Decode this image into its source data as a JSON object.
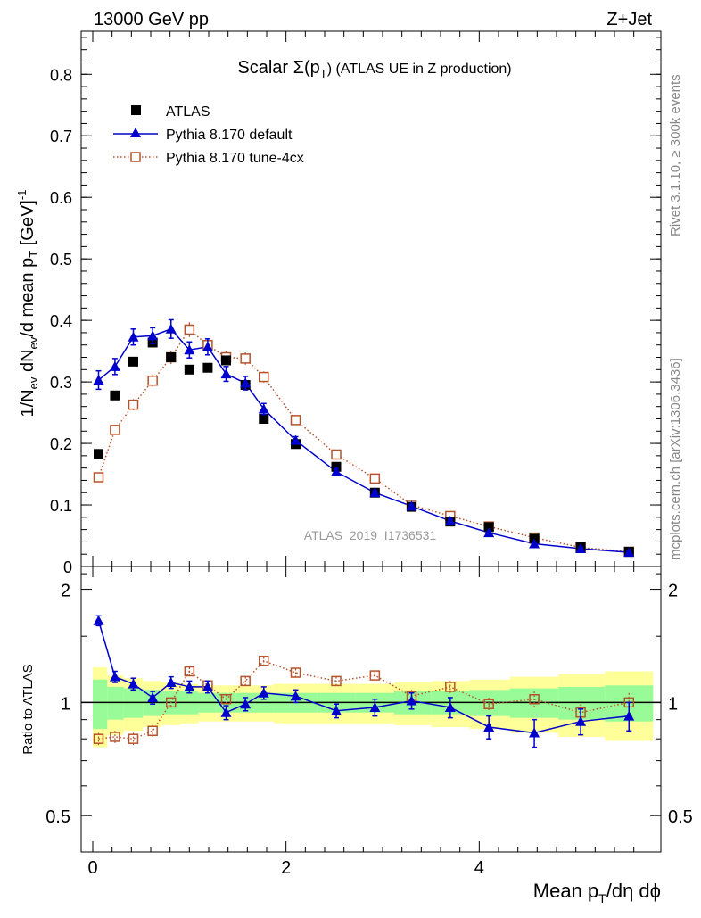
{
  "header": {
    "left": "13000 GeV pp",
    "right": "Z+Jet"
  },
  "side_labels": {
    "rivet": "Rivet 3.1.10, ≥ 300k events",
    "mcplots": "mcplots.cern.ch [arXiv:1306.3436]"
  },
  "chart_data": {
    "type": "scatter",
    "title": {
      "prefix": "Scalar Σ(p",
      "sub": "T",
      "suffix": ") (ATLAS UE in Z production)"
    },
    "watermark": "ATLAS_2019_I1736531",
    "xlabel": {
      "a": "Mean p",
      "sub": "T",
      "b": "/dη dϕ"
    },
    "ylabel": {
      "a": "1/N",
      "sub1": "ev",
      "b": " dN",
      "sub2": "ev",
      "c": "/d mean p",
      "sub3": "T",
      "d": " [GeV]",
      "sup": "-1"
    },
    "ratio_ylabel": "Ratio to ATLAS",
    "xlim": [
      -0.12,
      5.88
    ],
    "ylim": [
      0,
      0.87
    ],
    "ratio_ylim": [
      0.4,
      2.3
    ],
    "xticks": [
      0,
      2,
      4
    ],
    "yticks": [
      0,
      0.1,
      0.2,
      0.3,
      0.4,
      0.5,
      0.6,
      0.7,
      0.8
    ],
    "yticks_labels": [
      "0",
      "0.1",
      "0.2",
      "0.3",
      "0.4",
      "0.5",
      "0.6",
      "0.7",
      "0.8"
    ],
    "ratio_yticks": [
      0.5,
      1,
      2
    ],
    "ratio_yticks_labels": [
      "0.5",
      "1",
      "2"
    ],
    "legend": [
      {
        "name": "ATLAS",
        "marker": "square-filled",
        "color": "#000000"
      },
      {
        "name": "Pythia 8.170 default",
        "marker": "triangle",
        "color": "#0000cc"
      },
      {
        "name": "Pythia 8.170 tune-4cx",
        "marker": "square-open",
        "color": "#b5532a"
      }
    ],
    "x": [
      0.06,
      0.23,
      0.42,
      0.62,
      0.81,
      1.0,
      1.19,
      1.38,
      1.58,
      1.77,
      2.1,
      2.52,
      2.92,
      3.3,
      3.7,
      4.1,
      4.57,
      5.05,
      5.55
    ],
    "series": [
      {
        "name": "ATLAS",
        "values": [
          0.183,
          0.278,
          0.333,
          0.364,
          0.34,
          0.32,
          0.323,
          0.335,
          0.295,
          0.24,
          0.199,
          0.162,
          0.12,
          0.097,
          0.073,
          0.064,
          0.045,
          0.032,
          0.024
        ]
      },
      {
        "name": "Pythia 8.170 default",
        "values": [
          0.303,
          0.325,
          0.373,
          0.375,
          0.386,
          0.352,
          0.357,
          0.313,
          0.298,
          0.256,
          0.205,
          0.154,
          0.12,
          0.098,
          0.074,
          0.055,
          0.037,
          0.029,
          0.023
        ],
        "errors": [
          0.015,
          0.013,
          0.013,
          0.013,
          0.015,
          0.013,
          0.013,
          0.012,
          0.011,
          0.009,
          0.006,
          0.005,
          0.004,
          0.003,
          0.003,
          0.002,
          0.002,
          0.002,
          0.002
        ]
      },
      {
        "name": "Pythia 8.170 tune-4cx",
        "values": [
          0.145,
          0.222,
          0.263,
          0.302,
          0.34,
          0.385,
          0.36,
          0.34,
          0.338,
          0.308,
          0.238,
          0.182,
          0.143,
          0.1,
          0.082,
          0.065,
          0.047,
          0.031,
          0.024
        ],
        "errors": [
          0.007,
          0.008,
          0.009,
          0.01,
          0.011,
          0.012,
          0.011,
          0.01,
          0.01,
          0.009,
          0.006,
          0.005,
          0.004,
          0.003,
          0.003,
          0.002,
          0.002,
          0.002,
          0.002
        ]
      }
    ],
    "ratio_series": [
      {
        "name": "Pythia 8.170 default",
        "values": [
          1.65,
          1.17,
          1.12,
          1.03,
          1.13,
          1.1,
          1.1,
          0.94,
          0.99,
          1.06,
          1.04,
          0.95,
          0.97,
          1.01,
          0.97,
          0.86,
          0.83,
          0.89,
          0.92
        ],
        "errors": [
          0.05,
          0.04,
          0.04,
          0.04,
          0.04,
          0.04,
          0.04,
          0.04,
          0.04,
          0.04,
          0.04,
          0.04,
          0.05,
          0.05,
          0.06,
          0.06,
          0.07,
          0.07,
          0.08
        ]
      },
      {
        "name": "Pythia 8.170 tune-4cx",
        "values": [
          0.8,
          0.81,
          0.8,
          0.84,
          1.0,
          1.21,
          1.11,
          1.02,
          1.14,
          1.29,
          1.2,
          1.14,
          1.18,
          1.04,
          1.1,
          0.99,
          1.02,
          0.94,
          1.0
        ],
        "errors": [
          0.03,
          0.03,
          0.03,
          0.03,
          0.03,
          0.03,
          0.03,
          0.03,
          0.03,
          0.03,
          0.03,
          0.03,
          0.03,
          0.04,
          0.04,
          0.04,
          0.05,
          0.05,
          0.06
        ]
      }
    ],
    "bands": {
      "edges": [
        0.0,
        0.15,
        0.32,
        0.52,
        0.71,
        0.9,
        1.09,
        1.28,
        1.48,
        1.67,
        1.87,
        2.32,
        2.72,
        3.12,
        3.5,
        3.9,
        4.32,
        4.82,
        5.3,
        5.8
      ],
      "green": [
        0.15,
        0.1,
        0.09,
        0.08,
        0.07,
        0.07,
        0.06,
        0.06,
        0.06,
        0.06,
        0.06,
        0.06,
        0.06,
        0.07,
        0.07,
        0.08,
        0.09,
        0.1,
        0.11
      ],
      "yellow": [
        0.24,
        0.18,
        0.16,
        0.14,
        0.13,
        0.12,
        0.11,
        0.11,
        0.11,
        0.11,
        0.12,
        0.12,
        0.12,
        0.13,
        0.14,
        0.15,
        0.17,
        0.19,
        0.21
      ],
      "green_color": "#98fb98",
      "yellow_color": "#ffff99"
    }
  }
}
